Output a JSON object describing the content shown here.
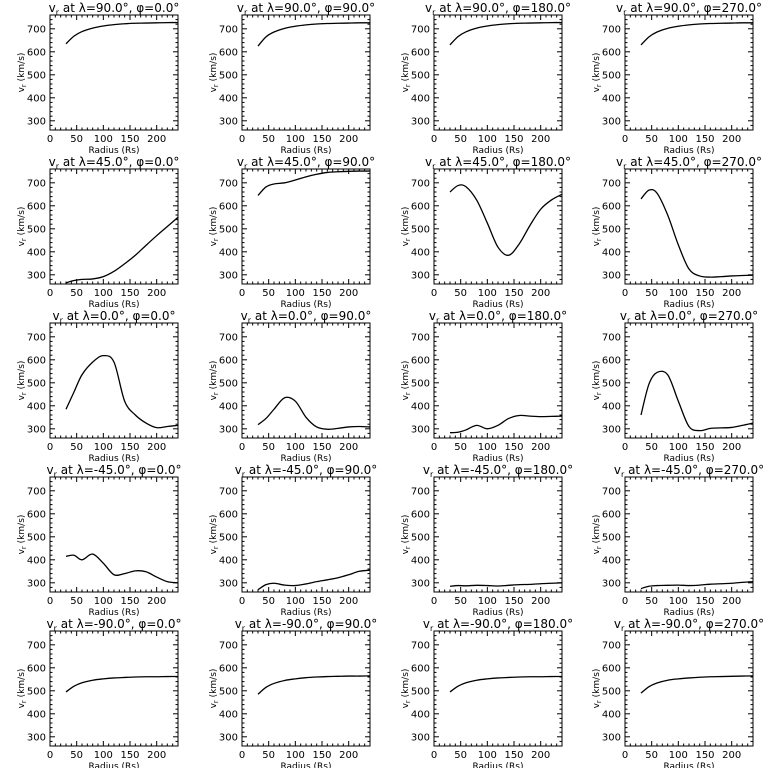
{
  "chart_data": {
    "type": "line",
    "grid": false,
    "xlabel": "Radius (Rs)",
    "ylabel": "vr (km/s)",
    "xlim": [
      0,
      240
    ],
    "ylim": [
      260,
      760
    ],
    "xticks": [
      0,
      50,
      100,
      150,
      200
    ],
    "yticks": [
      300,
      400,
      500,
      600,
      700
    ],
    "x": [
      30,
      45,
      60,
      80,
      100,
      120,
      140,
      160,
      180,
      200,
      220,
      240
    ],
    "panels": [
      {
        "title": "vr at λ=90.0°, φ=0.0°",
        "y": [
          635,
          668,
          688,
          703,
          712,
          718,
          722,
          724,
          725,
          726,
          727,
          727
        ]
      },
      {
        "title": "vr at λ=90.0°, φ=90.0°",
        "y": [
          625,
          665,
          686,
          702,
          711,
          717,
          721,
          723,
          724,
          725,
          726,
          726
        ]
      },
      {
        "title": "vr at λ=90.0°, φ=180.0°",
        "y": [
          630,
          666,
          687,
          703,
          712,
          718,
          722,
          724,
          725,
          726,
          727,
          727
        ]
      },
      {
        "title": "vr at λ=90.0°, φ=270.0°",
        "y": [
          630,
          665,
          686,
          702,
          711,
          717,
          721,
          723,
          724,
          725,
          726,
          726
        ]
      },
      {
        "title": "vr at λ=45.0°, φ=0.0°",
        "y": [
          265,
          275,
          280,
          282,
          292,
          315,
          348,
          385,
          428,
          470,
          510,
          550
        ]
      },
      {
        "title": "vr at λ=45.0°, φ=90.0°",
        "y": [
          645,
          682,
          695,
          700,
          712,
          726,
          737,
          745,
          748,
          750,
          751,
          751
        ]
      },
      {
        "title": "vr at λ=45.0°, φ=180.0°",
        "y": [
          660,
          688,
          683,
          625,
          525,
          420,
          385,
          435,
          515,
          585,
          625,
          650
        ]
      },
      {
        "title": "vr at λ=45.0°, φ=270.0°",
        "y": [
          630,
          668,
          655,
          560,
          430,
          325,
          295,
          290,
          292,
          295,
          297,
          298
        ]
      },
      {
        "title": "vr at λ=0.0°, φ=0.0°",
        "y": [
          385,
          460,
          535,
          590,
          618,
          590,
          420,
          360,
          325,
          305,
          310,
          315
        ]
      },
      {
        "title": "vr at λ=0.0°, φ=90.0°",
        "y": [
          318,
          345,
          385,
          435,
          420,
          350,
          308,
          298,
          302,
          308,
          310,
          308
        ]
      },
      {
        "title": "vr at λ=0.0°, φ=180.0°",
        "y": [
          283,
          285,
          295,
          315,
          300,
          315,
          345,
          358,
          355,
          353,
          354,
          355
        ]
      },
      {
        "title": "vr at λ=0.0°, φ=270.0°",
        "y": [
          360,
          495,
          545,
          535,
          420,
          310,
          292,
          302,
          304,
          306,
          315,
          325
        ]
      },
      {
        "title": "vr at λ=-45.0°, φ=0.0°",
        "y": [
          415,
          420,
          400,
          425,
          385,
          335,
          340,
          352,
          348,
          325,
          305,
          300
        ]
      },
      {
        "title": "vr at λ=-45.0°, φ=90.0°",
        "y": [
          270,
          292,
          298,
          290,
          288,
          295,
          305,
          313,
          322,
          335,
          350,
          355
        ]
      },
      {
        "title": "vr at λ=-45.0°, φ=180.0°",
        "y": [
          285,
          288,
          287,
          289,
          288,
          286,
          289,
          292,
          293,
          296,
          298,
          300
        ]
      },
      {
        "title": "vr at λ=-45.0°, φ=270.0°",
        "y": [
          275,
          285,
          288,
          289,
          290,
          288,
          290,
          294,
          296,
          298,
          302,
          305
        ]
      },
      {
        "title": "vr at λ=-90.0°, φ=0.0°",
        "y": [
          495,
          520,
          535,
          546,
          552,
          556,
          558,
          560,
          561,
          561,
          562,
          562
        ]
      },
      {
        "title": "vr at λ=-90.0°, φ=90.0°",
        "y": [
          485,
          515,
          532,
          545,
          552,
          557,
          560,
          562,
          563,
          564,
          564,
          565
        ]
      },
      {
        "title": "vr at λ=-90.0°, φ=180.0°",
        "y": [
          495,
          520,
          535,
          546,
          552,
          556,
          558,
          560,
          561,
          561,
          562,
          562
        ]
      },
      {
        "title": "vr at λ=-90.0°, φ=270.0°",
        "y": [
          490,
          518,
          534,
          546,
          552,
          556,
          559,
          561,
          562,
          563,
          564,
          565
        ]
      }
    ]
  }
}
